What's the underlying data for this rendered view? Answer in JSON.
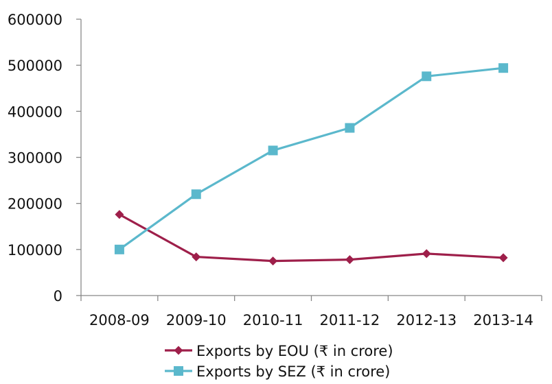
{
  "chart_data": {
    "type": "line",
    "title": "",
    "xlabel": "",
    "ylabel": "",
    "categories": [
      "2008-09",
      "2009-10",
      "2010-11",
      "2011-12",
      "2012-13",
      "2013-14"
    ],
    "ylim": [
      0,
      600000
    ],
    "yticks": [
      0,
      100000,
      200000,
      300000,
      400000,
      500000,
      600000
    ],
    "ytick_labels": [
      "0",
      "100000",
      "200000",
      "300000",
      "400000",
      "500000",
      "600000"
    ],
    "grid": false,
    "legend_position": "bottom",
    "series": [
      {
        "name": "Exports by EOU (₹ in crore)",
        "values": [
          176000,
          84000,
          75000,
          78000,
          91000,
          82000
        ],
        "color": "#9e1f4a",
        "marker": "diamond"
      },
      {
        "name": "Exports by SEZ (₹ in crore)",
        "values": [
          100000,
          220000,
          315000,
          364000,
          476000,
          494000
        ],
        "color": "#5bb8cc",
        "marker": "square"
      }
    ]
  }
}
